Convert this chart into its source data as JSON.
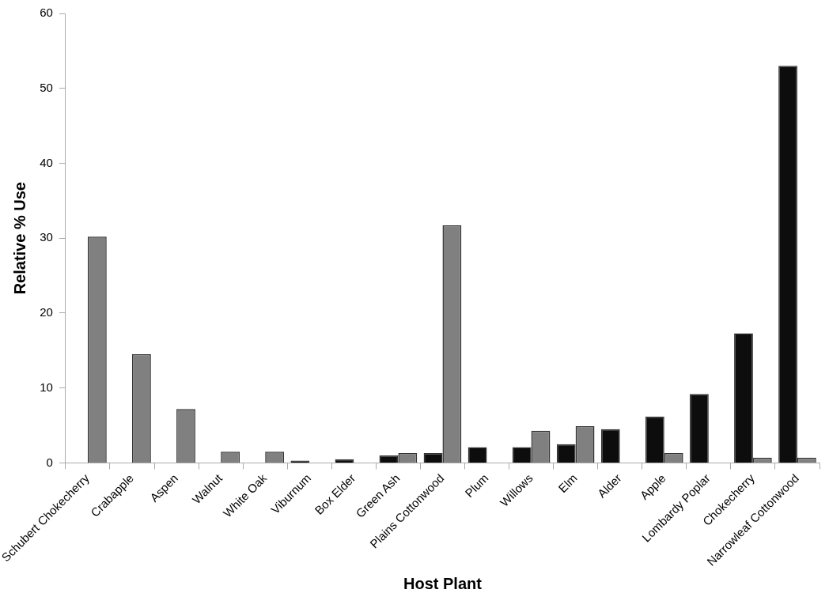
{
  "chart_data": {
    "type": "bar",
    "xlabel": "Host Plant",
    "ylabel": "Relative % Use",
    "categories": [
      "Schubert Chokecherry",
      "Crabapple",
      "Aspen",
      "Walnut",
      "White Oak",
      "Viburnum",
      "Box Elder",
      "Green Ash",
      "Plains Cottonwood",
      "Plum",
      "Willows",
      "Elm",
      "Alder",
      "Apple",
      "Lombardy Poplar",
      "Chokecherry",
      "Narrowleaf Cottonwood"
    ],
    "series": [
      {
        "color": "#0d0d0d",
        "values": [
          null,
          null,
          null,
          null,
          null,
          0.3,
          0.5,
          1.0,
          1.3,
          2.1,
          2.1,
          2.5,
          4.5,
          6.2,
          9.2,
          17.3,
          53
        ]
      },
      {
        "color": "#808080",
        "values": [
          30.2,
          14.5,
          7.2,
          1.5,
          1.5,
          null,
          null,
          1.3,
          31.7,
          null,
          4.3,
          4.9,
          null,
          1.3,
          null,
          0.7,
          0.7
        ]
      }
    ],
    "ylim": [
      0,
      60
    ],
    "yticks": [
      0,
      10,
      20,
      30,
      40,
      50,
      60
    ],
    "grid": false,
    "legend": false
  }
}
